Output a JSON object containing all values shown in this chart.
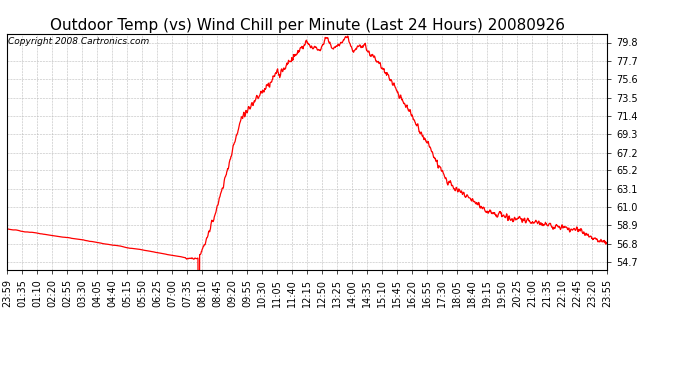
{
  "title": "Outdoor Temp (vs) Wind Chill per Minute (Last 24 Hours) 20080926",
  "copyright": "Copyright 2008 Cartronics.com",
  "line_color": "#ff0000",
  "background_color": "#ffffff",
  "plot_bg_color": "#ffffff",
  "grid_color": "#bbbbbb",
  "yticks": [
    54.7,
    56.8,
    58.9,
    61.0,
    63.1,
    65.2,
    67.2,
    69.3,
    71.4,
    73.5,
    75.6,
    77.7,
    79.8
  ],
  "ylim": [
    53.8,
    80.8
  ],
  "xtick_labels": [
    "23:59",
    "01:35",
    "01:10",
    "02:20",
    "02:55",
    "03:30",
    "04:05",
    "04:40",
    "05:15",
    "05:50",
    "06:25",
    "07:00",
    "07:35",
    "08:10",
    "08:45",
    "09:20",
    "09:55",
    "10:30",
    "11:05",
    "11:40",
    "12:15",
    "12:50",
    "13:25",
    "14:00",
    "14:35",
    "15:10",
    "15:45",
    "16:20",
    "16:55",
    "17:30",
    "18:05",
    "18:40",
    "19:15",
    "19:50",
    "20:25",
    "21:00",
    "21:35",
    "22:10",
    "22:45",
    "23:20",
    "23:55"
  ],
  "title_fontsize": 11,
  "copyright_fontsize": 6.5,
  "tick_fontsize": 7
}
